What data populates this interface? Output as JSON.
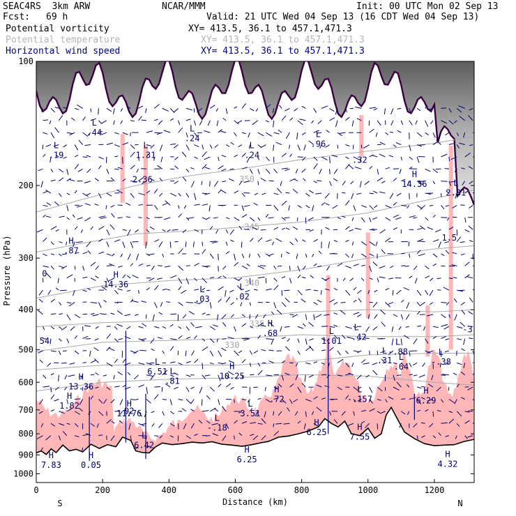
{
  "header": {
    "model": "SEAC4RS  3km ARW",
    "org": "NCAR/MMM",
    "init": "Init: 00 UTC Mon 02 Sep 13",
    "fcst_label": "Fcst:",
    "fcst_value": "69 h",
    "valid": "Valid: 21 UTC Wed 04 Sep 13 (16 CDT Wed 04 Sep 13)",
    "field1": "Potential vorticity",
    "field1_xy": "XY= 413.5, 36.1 to 457.1,471.3",
    "field2": "Potential temperature",
    "field2_xy": "XY= 413.5, 36.1 to 457.1,471.3",
    "field3": "Horizontal wind speed",
    "field3_xy": "XY= 413.5, 36.1 to 457.1,471.3"
  },
  "colors": {
    "terrain": "#000000",
    "pv_fill": "#ffb6b6",
    "theta": "#a8a8a8",
    "wind": "#00006e",
    "tropopause": "#3a0040"
  },
  "chart_data": {
    "type": "cross-section",
    "ylabel": "Pressure (hPa)",
    "xlabel": "Distance (km)",
    "x_range": [
      0,
      1320
    ],
    "y_range": [
      100,
      1050
    ],
    "y_scale": "log",
    "x_ticks": [
      0,
      200,
      400,
      600,
      800,
      1000,
      1200
    ],
    "y_ticks": [
      100,
      200,
      300,
      400,
      500,
      600,
      700,
      800,
      900,
      1000
    ],
    "orientation": {
      "left": "S",
      "right": "N"
    },
    "terrain_surface": [
      {
        "x": 0,
        "p": 890
      },
      {
        "x": 15,
        "p": 880
      },
      {
        "x": 30,
        "p": 898
      },
      {
        "x": 45,
        "p": 870
      },
      {
        "x": 60,
        "p": 888
      },
      {
        "x": 80,
        "p": 852
      },
      {
        "x": 100,
        "p": 880
      },
      {
        "x": 120,
        "p": 872
      },
      {
        "x": 140,
        "p": 885
      },
      {
        "x": 165,
        "p": 848
      },
      {
        "x": 190,
        "p": 868
      },
      {
        "x": 215,
        "p": 850
      },
      {
        "x": 240,
        "p": 860
      },
      {
        "x": 260,
        "p": 815
      },
      {
        "x": 285,
        "p": 830
      },
      {
        "x": 300,
        "p": 880
      },
      {
        "x": 320,
        "p": 888
      },
      {
        "x": 340,
        "p": 890
      },
      {
        "x": 360,
        "p": 860
      },
      {
        "x": 380,
        "p": 842
      },
      {
        "x": 410,
        "p": 850
      },
      {
        "x": 440,
        "p": 845
      },
      {
        "x": 470,
        "p": 838
      },
      {
        "x": 500,
        "p": 842
      },
      {
        "x": 530,
        "p": 836
      },
      {
        "x": 560,
        "p": 848
      },
      {
        "x": 590,
        "p": 852
      },
      {
        "x": 620,
        "p": 858
      },
      {
        "x": 650,
        "p": 850
      },
      {
        "x": 680,
        "p": 840
      },
      {
        "x": 700,
        "p": 835
      },
      {
        "x": 730,
        "p": 815
      },
      {
        "x": 760,
        "p": 810
      },
      {
        "x": 790,
        "p": 800
      },
      {
        "x": 820,
        "p": 788
      },
      {
        "x": 850,
        "p": 770
      },
      {
        "x": 870,
        "p": 735
      },
      {
        "x": 890,
        "p": 755
      },
      {
        "x": 910,
        "p": 770
      },
      {
        "x": 930,
        "p": 745
      },
      {
        "x": 950,
        "p": 800
      },
      {
        "x": 975,
        "p": 808
      },
      {
        "x": 1000,
        "p": 775
      },
      {
        "x": 1020,
        "p": 820
      },
      {
        "x": 1040,
        "p": 800
      },
      {
        "x": 1055,
        "p": 720
      },
      {
        "x": 1070,
        "p": 690
      },
      {
        "x": 1090,
        "p": 740
      },
      {
        "x": 1110,
        "p": 792
      },
      {
        "x": 1140,
        "p": 822
      },
      {
        "x": 1170,
        "p": 845
      },
      {
        "x": 1200,
        "p": 855
      },
      {
        "x": 1230,
        "p": 852
      },
      {
        "x": 1260,
        "p": 850
      },
      {
        "x": 1290,
        "p": 835
      },
      {
        "x": 1320,
        "p": 825
      }
    ],
    "theta_contours": [
      {
        "label": "350",
        "points": [
          {
            "x": 0,
            "p": 232
          },
          {
            "x": 150,
            "p": 215
          },
          {
            "x": 300,
            "p": 200
          },
          {
            "x": 450,
            "p": 190
          },
          {
            "x": 600,
            "p": 183
          },
          {
            "x": 800,
            "p": 173
          },
          {
            "x": 1000,
            "p": 165
          },
          {
            "x": 1200,
            "p": 158
          },
          {
            "x": 1320,
            "p": 152
          }
        ],
        "label_at": {
          "x": 635,
          "p": 193
        }
      },
      {
        "label": "345",
        "points": [
          {
            "x": 0,
            "p": 290
          },
          {
            "x": 150,
            "p": 275
          },
          {
            "x": 300,
            "p": 262
          },
          {
            "x": 450,
            "p": 258
          },
          {
            "x": 600,
            "p": 253
          },
          {
            "x": 800,
            "p": 245
          },
          {
            "x": 1000,
            "p": 233
          },
          {
            "x": 1200,
            "p": 215
          },
          {
            "x": 1320,
            "p": 205
          }
        ],
        "label_at": {
          "x": 650,
          "p": 252
        }
      },
      {
        "label": "340",
        "points": [
          {
            "x": 0,
            "p": 375
          },
          {
            "x": 200,
            "p": 350
          },
          {
            "x": 400,
            "p": 340
          },
          {
            "x": 600,
            "p": 335
          },
          {
            "x": 800,
            "p": 320
          },
          {
            "x": 1000,
            "p": 300
          },
          {
            "x": 1200,
            "p": 285
          },
          {
            "x": 1320,
            "p": 280
          }
        ],
        "label_at": {
          "x": 650,
          "p": 345
        }
      },
      {
        "label": "335",
        "points": [
          {
            "x": 0,
            "p": 440
          },
          {
            "x": 200,
            "p": 430
          },
          {
            "x": 400,
            "p": 425
          },
          {
            "x": 600,
            "p": 420
          },
          {
            "x": 800,
            "p": 405
          },
          {
            "x": 1000,
            "p": 400
          },
          {
            "x": 1200,
            "p": 405
          },
          {
            "x": 1320,
            "p": 400
          }
        ],
        "label_at": {
          "x": 665,
          "p": 433
        }
      },
      {
        "label": "330",
        "points": [
          {
            "x": 0,
            "p": 505
          },
          {
            "x": 200,
            "p": 480
          },
          {
            "x": 400,
            "p": 475
          },
          {
            "x": 600,
            "p": 470
          },
          {
            "x": 800,
            "p": 460
          },
          {
            "x": 1000,
            "p": 465
          },
          {
            "x": 1200,
            "p": 465
          },
          {
            "x": 1320,
            "p": 460
          }
        ],
        "label_at": {
          "x": 590,
          "p": 488
        }
      },
      {
        "label": "",
        "points": [
          {
            "x": 0,
            "p": 560
          },
          {
            "x": 200,
            "p": 545
          },
          {
            "x": 400,
            "p": 545
          },
          {
            "x": 600,
            "p": 545
          },
          {
            "x": 800,
            "p": 535
          },
          {
            "x": 1000,
            "p": 515
          },
          {
            "x": 1200,
            "p": 510
          },
          {
            "x": 1320,
            "p": 510
          }
        ],
        "label_at": null
      },
      {
        "label": "",
        "points": [
          {
            "x": 0,
            "p": 630
          },
          {
            "x": 200,
            "p": 600
          },
          {
            "x": 400,
            "p": 590
          },
          {
            "x": 600,
            "p": 585
          },
          {
            "x": 800,
            "p": 575
          },
          {
            "x": 1000,
            "p": 580
          },
          {
            "x": 1200,
            "p": 600
          },
          {
            "x": 1320,
            "p": 610
          }
        ],
        "label_at": null
      }
    ],
    "extremes": [
      {
        "kind": "L",
        "value": ".19",
        "x": 60,
        "p": 170
      },
      {
        "kind": "L",
        "value": ".44",
        "x": 175,
        "p": 150
      },
      {
        "kind": "L",
        "value": "1.31",
        "x": 330,
        "p": 170
      },
      {
        "kind": "",
        "value": "2.36",
        "x": 320,
        "p": 195
      },
      {
        "kind": "L",
        "value": ".24",
        "x": 470,
        "p": 155
      },
      {
        "kind": "L",
        "value": ".24",
        "x": 650,
        "p": 170
      },
      {
        "kind": "L",
        "value": ".96",
        "x": 850,
        "p": 160
      },
      {
        "kind": "",
        "value": ".32",
        "x": 975,
        "p": 175
      },
      {
        "kind": "H",
        "value": "14.36",
        "x": 1140,
        "p": 200
      },
      {
        "kind": "L",
        "value": "2.81",
        "x": 1265,
        "p": 210
      },
      {
        "kind": "",
        "value": "1.5",
        "x": 1245,
        "p": 270
      },
      {
        "kind": "H",
        "value": ".87",
        "x": 105,
        "p": 290
      },
      {
        "kind": "",
        "value": "0",
        "x": 25,
        "p": 330
      },
      {
        "kind": "H",
        "value": "14.36",
        "x": 240,
        "p": 350
      },
      {
        "kind": "L",
        "value": ".03",
        "x": 500,
        "p": 380
      },
      {
        "kind": "L",
        "value": ".02",
        "x": 620,
        "p": 375
      },
      {
        "kind": "H",
        "value": ".68",
        "x": 705,
        "p": 460
      },
      {
        "kind": "",
        "value": "-3",
        "x": 1300,
        "p": 450
      },
      {
        "kind": "",
        "value": "54",
        "x": 25,
        "p": 480
      },
      {
        "kind": "L",
        "value": "1.01",
        "x": 890,
        "p": 480
      },
      {
        "kind": "L",
        "value": "-.42",
        "x": 965,
        "p": 470
      },
      {
        "kind": "L",
        "value": "-.88",
        "x": 1090,
        "p": 510
      },
      {
        "kind": "L",
        "value": ".31",
        "x": 1050,
        "p": 535
      },
      {
        "kind": "L",
        "value": ".64",
        "x": 1100,
        "p": 555
      },
      {
        "kind": "L",
        "value": "-.38",
        "x": 1220,
        "p": 540
      },
      {
        "kind": "L",
        "value": "6.51",
        "x": 365,
        "p": 570
      },
      {
        "kind": "L",
        "value": ".81",
        "x": 410,
        "p": 600
      },
      {
        "kind": "H",
        "value": "10.25",
        "x": 590,
        "p": 585
      },
      {
        "kind": "H",
        "value": "13.36",
        "x": 135,
        "p": 620
      },
      {
        "kind": "H",
        "value": "1.82",
        "x": 100,
        "p": 690
      },
      {
        "kind": "H",
        "value": "11.76",
        "x": 280,
        "p": 720
      },
      {
        "kind": "",
        "value": "92",
        "x": 280,
        "p": 710
      },
      {
        "kind": "H",
        "value": ".72",
        "x": 725,
        "p": 665
      },
      {
        "kind": "L",
        "value": "-.157",
        "x": 975,
        "p": 665
      },
      {
        "kind": "H",
        "value": "6.29",
        "x": 1175,
        "p": 670
      },
      {
        "kind": "L",
        "value": "3.51",
        "x": 645,
        "p": 720
      },
      {
        "kind": "L",
        "value": "-.18",
        "x": 545,
        "p": 780
      },
      {
        "kind": "H",
        "value": "6.25",
        "x": 845,
        "p": 800
      },
      {
        "kind": "H",
        "value": "7.55",
        "x": 975,
        "p": 820
      },
      {
        "kind": "L",
        "value": "6.42",
        "x": 325,
        "p": 860
      },
      {
        "kind": "H",
        "value": "6.25",
        "x": 635,
        "p": 930
      },
      {
        "kind": "H",
        "value": "7.83",
        "x": 45,
        "p": 960
      },
      {
        "kind": "H",
        "value": "0.05",
        "x": 165,
        "p": 960
      },
      {
        "kind": "H",
        "value": "4.32",
        "x": 1240,
        "p": 955
      }
    ]
  }
}
